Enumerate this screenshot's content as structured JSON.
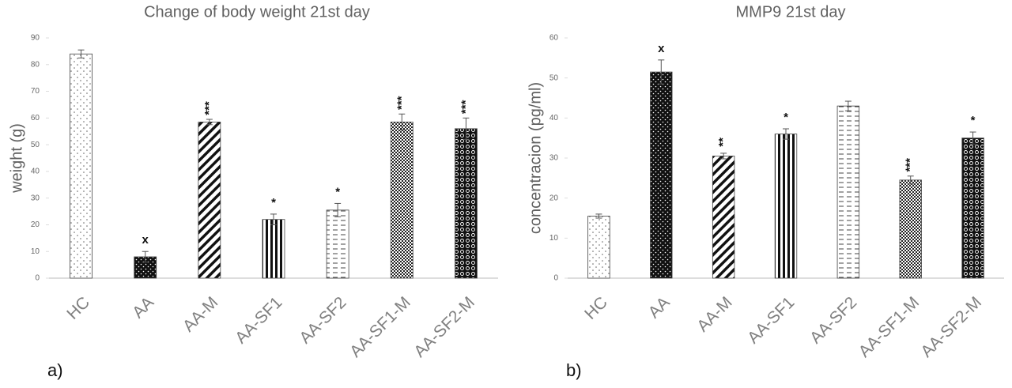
{
  "chart_data": [
    {
      "type": "bar",
      "title": "Change of body weight 21st day",
      "ylabel": "weight (g)",
      "panel_label": "a)",
      "categories": [
        "HC",
        "AA",
        "AA-M",
        "AA-SF1",
        "AA-SF2",
        "AA-SF1-M",
        "AA-SF2-M"
      ],
      "values": [
        84,
        8,
        58.5,
        22,
        25.5,
        58.5,
        56
      ],
      "errors": [
        1.5,
        2,
        1,
        2,
        2.5,
        3,
        4
      ],
      "annotations": [
        null,
        "x",
        "***",
        "*",
        "*",
        "***",
        "***"
      ],
      "ylim": [
        0,
        90
      ],
      "yticks": [
        0,
        10,
        20,
        30,
        40,
        50,
        60,
        70,
        80,
        90
      ]
    },
    {
      "type": "bar",
      "title": "MMP9 21st day",
      "ylabel": "concentracion (pg/ml)",
      "panel_label": "b)",
      "categories": [
        "HC",
        "AA",
        "AA-M",
        "AA-SF1",
        "AA-SF2",
        "AA-SF1-M",
        "AA-SF2-M"
      ],
      "values": [
        15.5,
        51.5,
        30.5,
        36,
        43,
        24.5,
        35
      ],
      "errors": [
        0.5,
        3,
        0.7,
        1.3,
        1.2,
        1,
        1.5
      ],
      "annotations": [
        null,
        "x",
        "**",
        "*",
        null,
        "***",
        "*"
      ],
      "ylim": [
        0,
        60
      ],
      "yticks": [
        0,
        10,
        20,
        30,
        40,
        50,
        60
      ]
    }
  ]
}
